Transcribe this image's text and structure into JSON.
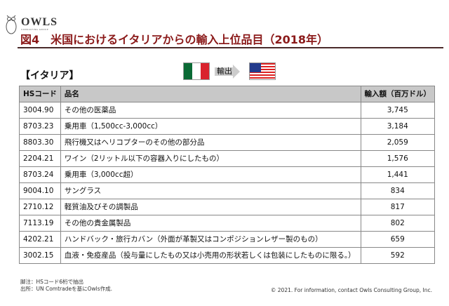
{
  "logo": {
    "name": "OWLS",
    "sub": "CONSULTING GROUP"
  },
  "title": "図4　米国におけるイタリアからの輸入上位品目（2018年）",
  "country_label": "【イタリア】",
  "flow": {
    "label": "輸出",
    "from_flag": "italy-flag",
    "to_flag": "usa-flag"
  },
  "colors": {
    "title": "#8b1a1a",
    "header_bg": "#c8c8c8"
  },
  "table": {
    "headers": [
      "HSコード",
      "品名",
      "輸入額（百万ドル）"
    ],
    "rows": [
      [
        "3004.90",
        "その他の医薬品",
        "3,745"
      ],
      [
        "8703.23",
        "乗用車（1,500cc-3,000cc）",
        "3,184"
      ],
      [
        "8803.30",
        "飛行機又はヘリコプターのその他の部分品",
        "2,059"
      ],
      [
        "2204.21",
        "ワイン（2リットル以下の容器入りにしたもの）",
        "1,576"
      ],
      [
        "8703.24",
        "乗用車（3,000cc超）",
        "1,441"
      ],
      [
        "9004.10",
        "サングラス",
        "834"
      ],
      [
        "2710.12",
        "軽質油及びその調製品",
        "817"
      ],
      [
        "7113.19",
        "その他の貴金属製品",
        "802"
      ],
      [
        "4202.21",
        "ハンドバック・旅行カバン（外面が革製又はコンポジションレザー製のもの）",
        "659"
      ],
      [
        "3002.15",
        "血液・免疫産品（投与量にしたもの又は小売用の形状若しくは包装にしたものに限る。）",
        "592"
      ]
    ]
  },
  "notes": [
    "脚注：HSコード6桁で抽出",
    "出所：UN Comtradeを基にOwls作成."
  ],
  "copyright": "© 2021. For information, contact Owls Consulting Group, Inc."
}
